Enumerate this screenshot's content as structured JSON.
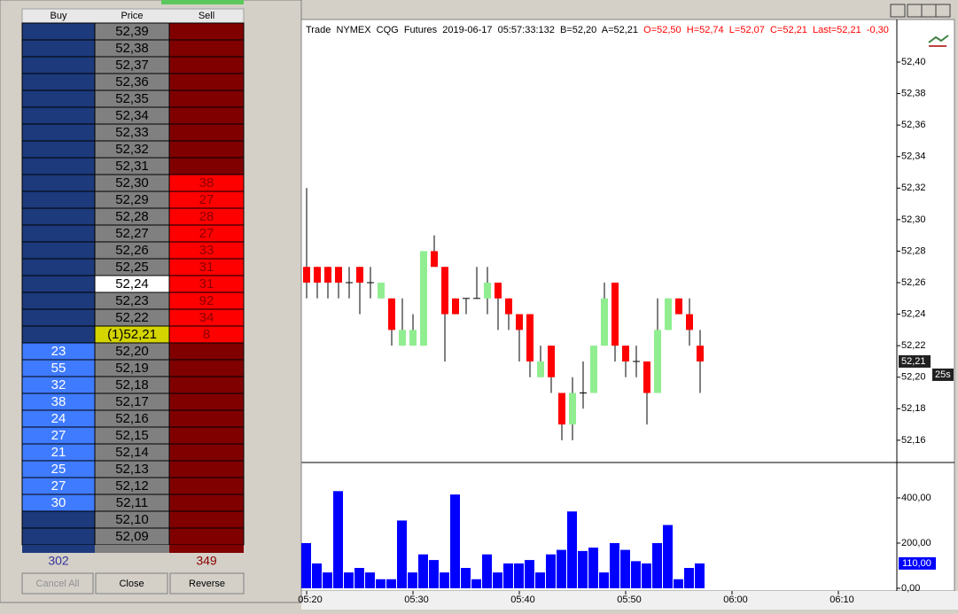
{
  "dom": {
    "headers": [
      "Buy",
      "Price",
      "Sell"
    ],
    "colors": {
      "buy_empty": "#1c3a7c",
      "buy": "#3f7bff",
      "sell_empty": "#800000",
      "sell": "#ff0000",
      "price": "#808080"
    },
    "rows": [
      {
        "price": "52,39",
        "buy": null,
        "sell": null
      },
      {
        "price": "52,38",
        "buy": null,
        "sell": null
      },
      {
        "price": "52,37",
        "buy": null,
        "sell": null
      },
      {
        "price": "52,36",
        "buy": null,
        "sell": null
      },
      {
        "price": "52,35",
        "buy": null,
        "sell": null
      },
      {
        "price": "52,34",
        "buy": null,
        "sell": null
      },
      {
        "price": "52,33",
        "buy": null,
        "sell": null
      },
      {
        "price": "52,32",
        "buy": null,
        "sell": null
      },
      {
        "price": "52,31",
        "buy": null,
        "sell": null
      },
      {
        "price": "52,30",
        "buy": null,
        "sell": 38
      },
      {
        "price": "52,29",
        "buy": null,
        "sell": 27
      },
      {
        "price": "52,28",
        "buy": null,
        "sell": 28
      },
      {
        "price": "52,27",
        "buy": null,
        "sell": 27
      },
      {
        "price": "52,26",
        "buy": null,
        "sell": 33
      },
      {
        "price": "52,25",
        "buy": null,
        "sell": 31
      },
      {
        "price": "52,24",
        "buy": null,
        "sell": 31,
        "price_color": "#ffffff"
      },
      {
        "price": "52,23",
        "buy": null,
        "sell": 92
      },
      {
        "price": "52,22",
        "buy": null,
        "sell": 34
      },
      {
        "price": "(1)52,21",
        "buy": null,
        "sell": 8,
        "price_color": "#d4d400"
      },
      {
        "price": "52,20",
        "buy": 23,
        "sell": null
      },
      {
        "price": "52,19",
        "buy": 55,
        "sell": null
      },
      {
        "price": "52,18",
        "buy": 32,
        "sell": null
      },
      {
        "price": "52,17",
        "buy": 38,
        "sell": null
      },
      {
        "price": "52,16",
        "buy": 24,
        "sell": null
      },
      {
        "price": "52,15",
        "buy": 27,
        "sell": null
      },
      {
        "price": "52,14",
        "buy": 21,
        "sell": null
      },
      {
        "price": "52,13",
        "buy": 25,
        "sell": null
      },
      {
        "price": "52,12",
        "buy": 27,
        "sell": null
      },
      {
        "price": "52,11",
        "buy": 30,
        "sell": null
      },
      {
        "price": "52,10",
        "buy": null,
        "sell": null
      },
      {
        "price": "52,09",
        "buy": null,
        "sell": null
      }
    ],
    "totals": {
      "buy": "302",
      "sell": "349"
    },
    "buttons": [
      "Cancel All",
      "Close",
      "Reverse"
    ]
  },
  "chart": {
    "type": "candlestick",
    "title": "Trade  NYMEX  CQG  Futures  2019-06-17  05:57:33:132  B=52,20  A=52,21  ",
    "stats": "O=52,50  H=52,74  L=52,07  C=52,21  Last=52,21  -0,30",
    "up_color": "#90ee90",
    "down_color": "#ff0000",
    "volume_color": "#0000ff",
    "candles": {
      "open": [
        52.27,
        52.27,
        52.27,
        52.27,
        52.26,
        52.27,
        52.26,
        52.25,
        52.25,
        52.22,
        52.22,
        52.22,
        52.28,
        52.27,
        52.25,
        52.25,
        52.25,
        52.25,
        52.26,
        52.25,
        52.24,
        52.24,
        52.2,
        52.22,
        52.19,
        52.17,
        52.19,
        52.19,
        52.22,
        52.26,
        52.22,
        52.21,
        52.21,
        52.19,
        52.23,
        52.25,
        52.24,
        52.22
      ],
      "high": [
        52.32,
        52.27,
        52.27,
        52.27,
        52.27,
        52.27,
        52.27,
        52.26,
        52.25,
        52.25,
        52.24,
        52.28,
        52.29,
        52.27,
        52.25,
        52.25,
        52.27,
        52.27,
        52.26,
        52.25,
        52.24,
        52.24,
        52.22,
        52.22,
        52.19,
        52.2,
        52.21,
        52.22,
        52.26,
        52.26,
        52.22,
        52.22,
        52.21,
        52.25,
        52.25,
        52.25,
        52.25,
        52.23
      ],
      "low": [
        52.25,
        52.25,
        52.25,
        52.25,
        52.25,
        52.24,
        52.25,
        52.25,
        52.22,
        52.22,
        52.22,
        52.22,
        52.27,
        52.21,
        52.24,
        52.24,
        52.25,
        52.24,
        52.23,
        52.23,
        52.21,
        52.2,
        52.2,
        52.19,
        52.16,
        52.16,
        52.18,
        52.19,
        52.22,
        52.21,
        52.2,
        52.2,
        52.17,
        52.19,
        52.23,
        52.24,
        52.22,
        52.19
      ],
      "close": [
        52.26,
        52.26,
        52.26,
        52.26,
        52.26,
        52.26,
        52.26,
        52.26,
        52.23,
        52.23,
        52.23,
        52.28,
        52.27,
        52.24,
        52.24,
        52.25,
        52.25,
        52.26,
        52.25,
        52.24,
        52.23,
        52.21,
        52.21,
        52.2,
        52.17,
        52.19,
        52.19,
        52.22,
        52.25,
        52.22,
        52.21,
        52.21,
        52.19,
        52.23,
        52.25,
        52.24,
        52.23,
        52.21
      ]
    },
    "volume": [
      200,
      110,
      70,
      430,
      70,
      90,
      70,
      40,
      40,
      300,
      70,
      150,
      125,
      70,
      415,
      90,
      40,
      150,
      70,
      110,
      110,
      125,
      70,
      150,
      170,
      340,
      165,
      180,
      70,
      200,
      170,
      120,
      110,
      200,
      280,
      40,
      90,
      110
    ],
    "ylim": [
      52.147,
      52.427
    ],
    "yticks": [
      {
        "value": 52.16,
        "label": "52,16"
      },
      {
        "value": 52.18,
        "label": "52,18"
      },
      {
        "value": 52.2,
        "label": "52,20"
      },
      {
        "value": 52.22,
        "label": "52,22"
      },
      {
        "value": 52.24,
        "label": "52,24"
      },
      {
        "value": 52.26,
        "label": "52,26"
      },
      {
        "value": 52.28,
        "label": "52,28"
      },
      {
        "value": 52.3,
        "label": "52,30"
      },
      {
        "value": 52.32,
        "label": "52,32"
      },
      {
        "value": 52.34,
        "label": "52,34"
      },
      {
        "value": 52.36,
        "label": "52,36"
      },
      {
        "value": 52.38,
        "label": "52,38"
      },
      {
        "value": 52.4,
        "label": "52,40"
      }
    ],
    "vlim": [
      -8,
      545
    ],
    "vticks": [
      {
        "value": 0,
        "label": "0,00"
      },
      {
        "value": 200,
        "label": "200,00"
      },
      {
        "value": 400,
        "label": "400,00"
      }
    ],
    "last_price": {
      "value": 52.21,
      "label": "52,21"
    },
    "timer": "25s",
    "last_volume": {
      "value": 110,
      "label": "110,00"
    },
    "xticks": [
      "05:20",
      "05:30",
      "05:40",
      "05:50",
      "06:00",
      "06:10"
    ]
  }
}
